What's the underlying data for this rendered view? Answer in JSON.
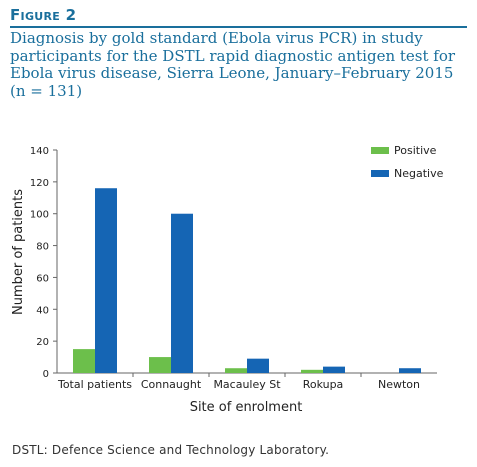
{
  "figure": {
    "label": "Figure 2",
    "title": "Diagnosis by gold standard (Ebola virus PCR) in study participants for the DSTL rapid diagnostic antigen test for Ebola virus disease, Sierra Leone, January–February 2015 (n = 131)",
    "footnote": "DSTL: Defence Science and Technology Laboratory."
  },
  "colors": {
    "accent": "#1a6f9c",
    "positive": "#6cbf4b",
    "negative": "#1565b4"
  },
  "chart_data": {
    "type": "bar",
    "categories": [
      "Total patients",
      "Connaught",
      "Macauley St",
      "Rokupa",
      "Newton"
    ],
    "series": [
      {
        "name": "Positive",
        "color": "#6cbf4b",
        "values": [
          15,
          10,
          3,
          2,
          0
        ]
      },
      {
        "name": "Negative",
        "color": "#1565b4",
        "values": [
          116,
          100,
          9,
          4,
          3
        ]
      }
    ],
    "xlabel": "Site of enrolment",
    "ylabel": "Number of patients",
    "ylim": [
      0,
      140
    ],
    "yticks": [
      0,
      20,
      40,
      60,
      80,
      100,
      120,
      140
    ],
    "grid": false,
    "legend": "top-right"
  }
}
